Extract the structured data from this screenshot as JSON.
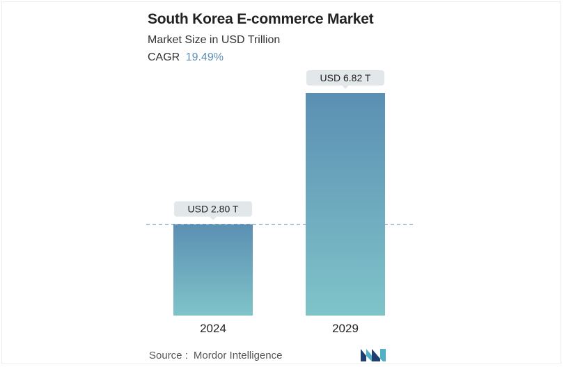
{
  "header": {
    "title": "South Korea E-commerce Market",
    "subtitle": "Market Size in USD Trillion",
    "cagr_label": "CAGR",
    "cagr_value": "19.49%"
  },
  "chart_data": {
    "type": "bar",
    "title": "South Korea E-commerce Market",
    "subtitle": "Market Size in USD Trillion",
    "categories": [
      "2024",
      "2029"
    ],
    "values": [
      2.8,
      6.82
    ],
    "data_labels": [
      "USD 2.80 T",
      "USD 6.82 T"
    ],
    "xlabel": "",
    "ylabel": "",
    "ylim": [
      0,
      6.82
    ],
    "grid": false,
    "reference_line": 2.8,
    "colors": {
      "bar_top": "#5b8fb3",
      "bar_bottom": "#7fc4c9",
      "label_bg": "#e2e7e9",
      "ref_line": "#7a9fbf"
    }
  },
  "footer": {
    "source_label": "Source :",
    "source_value": "Mordor Intelligence"
  },
  "logo": {
    "icon": "mordor-intelligence-logo-icon",
    "colors": [
      "#1f3f6e",
      "#4fb0c6"
    ]
  }
}
